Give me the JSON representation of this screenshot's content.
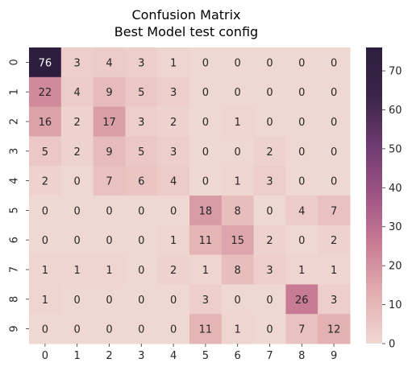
{
  "chart_data": {
    "type": "heatmap",
    "title_lines": [
      "Confusion Matrix",
      "Best Model test config"
    ],
    "xlabel": "",
    "ylabel": "",
    "x_categories": [
      "0",
      "1",
      "2",
      "3",
      "4",
      "5",
      "6",
      "7",
      "8",
      "9"
    ],
    "y_categories": [
      "0",
      "1",
      "2",
      "3",
      "4",
      "5",
      "6",
      "7",
      "8",
      "9"
    ],
    "values": [
      [
        76,
        3,
        4,
        3,
        1,
        0,
        0,
        0,
        0,
        0
      ],
      [
        22,
        4,
        9,
        5,
        3,
        0,
        0,
        0,
        0,
        0
      ],
      [
        16,
        2,
        17,
        3,
        2,
        0,
        1,
        0,
        0,
        0
      ],
      [
        5,
        2,
        9,
        5,
        3,
        0,
        0,
        2,
        0,
        0
      ],
      [
        2,
        0,
        7,
        6,
        4,
        0,
        1,
        3,
        0,
        0
      ],
      [
        0,
        0,
        0,
        0,
        0,
        18,
        8,
        0,
        4,
        7
      ],
      [
        0,
        0,
        0,
        0,
        1,
        11,
        15,
        2,
        0,
        2
      ],
      [
        1,
        1,
        1,
        0,
        2,
        1,
        8,
        3,
        1,
        1
      ],
      [
        1,
        0,
        0,
        0,
        0,
        3,
        0,
        0,
        26,
        3
      ],
      [
        0,
        0,
        0,
        0,
        0,
        11,
        1,
        0,
        7,
        12
      ]
    ],
    "vmin": 0,
    "vmax": 76,
    "colorbar_ticks": [
      "0",
      "10",
      "20",
      "30",
      "40",
      "50",
      "60",
      "70"
    ],
    "colormap": [
      "#f0d8d2",
      "#e3afb1",
      "#c97d95",
      "#9f5586",
      "#6e3b70",
      "#3a2548",
      "#2d1e3e"
    ],
    "annotation_dark_text": "#262626",
    "annotation_light_text": "#ffffff",
    "grid": false,
    "legend": "colorbar-right"
  }
}
